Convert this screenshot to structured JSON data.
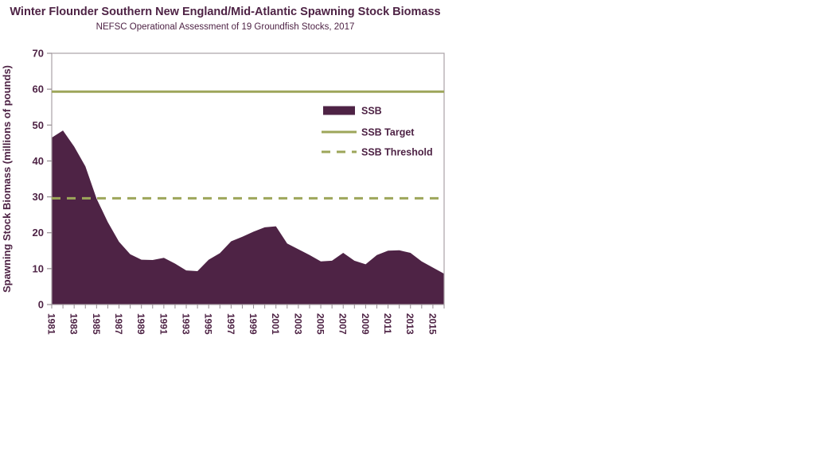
{
  "chart_data": {
    "type": "area",
    "title": "Winter Flounder Southern New England/Mid-Atlantic Spawning Stock Biomass",
    "subtitle": "NEFSC Operational Assessment of 19 Groundfish Stocks, 2017",
    "xlabel": "",
    "ylabel": "Spawning Stock Biomass (millions of pounds)",
    "ylim": [
      0,
      70
    ],
    "ytick_step": 10,
    "ytick_labels": [
      "0",
      "10",
      "20",
      "30",
      "40",
      "50",
      "60",
      "70"
    ],
    "grid": false,
    "x": [
      1981,
      1982,
      1983,
      1984,
      1985,
      1986,
      1987,
      1988,
      1989,
      1990,
      1991,
      1992,
      1993,
      1994,
      1995,
      1996,
      1997,
      1998,
      1999,
      2000,
      2001,
      2002,
      2003,
      2004,
      2005,
      2006,
      2007,
      2008,
      2009,
      2010,
      2011,
      2012,
      2013,
      2014,
      2015,
      2016
    ],
    "xtick_labels": [
      "1981",
      "1983",
      "1985",
      "1987",
      "1989",
      "1991",
      "1993",
      "1995",
      "1997",
      "1999",
      "2001",
      "2003",
      "2005",
      "2007",
      "2009",
      "2011",
      "2013",
      "2015"
    ],
    "series": [
      {
        "name": "SSB",
        "type": "area",
        "color": "#4e2345",
        "values": [
          46.5,
          48.5,
          44.0,
          38.5,
          29.5,
          23.0,
          17.5,
          14.0,
          12.5,
          12.4,
          13.0,
          11.4,
          9.5,
          9.3,
          12.5,
          14.3,
          17.6,
          18.9,
          20.3,
          21.5,
          21.8,
          17.0,
          15.4,
          13.8,
          12.0,
          12.2,
          14.4,
          12.2,
          11.2,
          13.8,
          15.0,
          15.1,
          14.4,
          12.0,
          10.3,
          8.6
        ]
      },
      {
        "name": "SSB Target",
        "type": "hline",
        "style": "solid",
        "color": "#9da65a",
        "value": 59.3
      },
      {
        "name": "SSB Threshold",
        "type": "hline",
        "style": "dashed",
        "color": "#9da65a",
        "value": 29.6
      }
    ],
    "legend": {
      "position": "inside-upper-right",
      "entries": [
        "SSB",
        "SSB Target",
        "SSB Threshold"
      ]
    },
    "colors": {
      "text": "#4e2345",
      "axis_border": "#aba2a7",
      "tick": "#968d92",
      "background": "#ffffff"
    }
  }
}
